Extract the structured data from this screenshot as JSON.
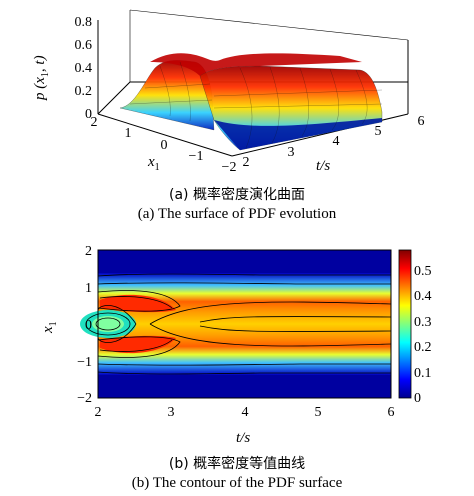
{
  "chart_data": [
    {
      "type": "surface",
      "x_ticks": [
        "2",
        "3",
        "4",
        "5",
        "6"
      ],
      "x1_ticks": [
        "2",
        "1",
        "0",
        "−1",
        "−2"
      ],
      "z_ticks": [
        "0",
        "0.2",
        "0.4",
        "0.6",
        "0.8"
      ],
      "xlabel": "t/s",
      "x1label": "x",
      "x1label_sub": "1",
      "zlabel": "p (x",
      "zlabel_sub": "1",
      "zlabel_end": ", t)",
      "xlim": [
        2,
        6
      ],
      "x1lim": [
        -2,
        2
      ],
      "zlim": [
        0,
        0.8
      ],
      "caption_cn": "(a) 概率密度演化曲面",
      "caption_en": "(a) The surface of PDF evolution"
    },
    {
      "type": "contour",
      "x_ticks": [
        "2",
        "3",
        "4",
        "5",
        "6"
      ],
      "y_ticks": [
        "2",
        "1",
        "0",
        "−1",
        "−2"
      ],
      "colorbar_ticks": [
        "0.5",
        "0.4",
        "0.3",
        "0.2",
        "0.1",
        "0"
      ],
      "xlabel": "t/s",
      "ylabel": "x",
      "ylabel_sub": "1",
      "xlim": [
        2,
        6
      ],
      "ylim": [
        -2,
        2
      ],
      "clim": [
        0,
        0.58
      ],
      "caption_cn": "(b) 概率密度等值曲线",
      "caption_en": "(b) The contour of the PDF surface"
    }
  ],
  "colors": {
    "jet_dark_blue": "#00008f",
    "jet_blue": "#0050ff",
    "jet_cyan": "#00dfff",
    "jet_yellow": "#ffef00",
    "jet_orange": "#ff7000",
    "jet_dark_red": "#800000"
  }
}
